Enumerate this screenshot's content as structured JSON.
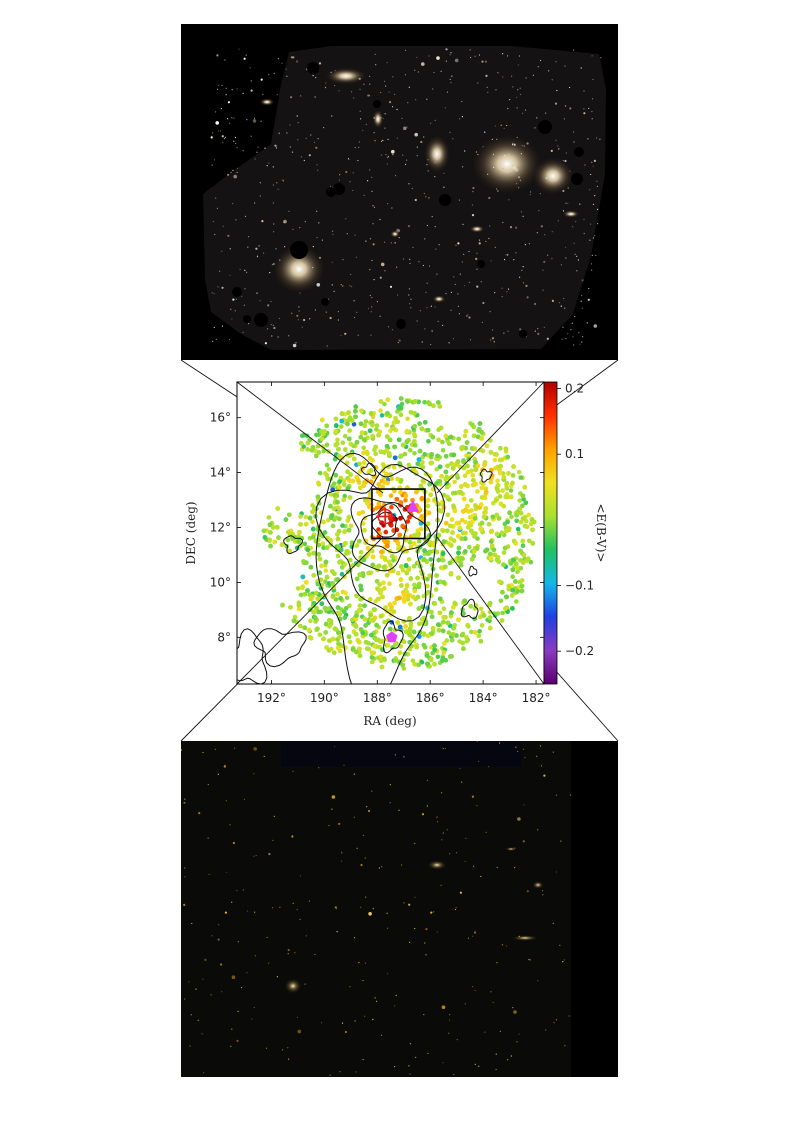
{
  "chart_data": {
    "type": "scatter",
    "xlabel": "RA (deg)",
    "ylabel": "DEC (deg)",
    "colorbar_label": "<E(B-V)>",
    "xlim": [
      193.3,
      181.7
    ],
    "ylim": [
      6.3,
      17.3
    ],
    "x_ticks": [
      192,
      190,
      188,
      186,
      184,
      182
    ],
    "x_tick_labels": [
      "192°",
      "190°",
      "188°",
      "186°",
      "184°",
      "182°"
    ],
    "y_ticks": [
      8,
      10,
      12,
      14,
      16
    ],
    "y_tick_labels": [
      "8°",
      "10°",
      "12°",
      "14°",
      "16°"
    ],
    "colorbar_range": [
      -0.25,
      0.21
    ],
    "colorbar_ticks": [
      0.2,
      0.1,
      -0.1,
      -0.2
    ],
    "colorbar_tick_labels": [
      "0.2",
      "0.1",
      "−0.1",
      "−0.2"
    ],
    "colormap": [
      "#5a0070",
      "#8a3bbf",
      "#2040e0",
      "#14b8e8",
      "#20c060",
      "#a8e030",
      "#f0e020",
      "#ffa000",
      "#ff3000",
      "#b00000"
    ],
    "box": {
      "ra_min": 186.2,
      "ra_max": 188.2,
      "dec_min": 11.6,
      "dec_max": 13.4
    },
    "markers": [
      {
        "type": "red-cross",
        "ra": 187.7,
        "dec": 12.4,
        "color": "#e02020"
      },
      {
        "type": "magenta-triangle",
        "ra": 186.65,
        "dec": 12.75,
        "color": "#e040ff"
      },
      {
        "type": "magenta-pentagon",
        "ra": 187.45,
        "dec": 8.0,
        "color": "#e040ff"
      }
    ],
    "field_center": {
      "ra": 187.2,
      "dec": 11.8
    },
    "field_radius_deg": 5.0,
    "hotspots": [
      {
        "ra": 187.7,
        "dec": 12.1,
        "strength": 0.18
      },
      {
        "ra": 186.9,
        "dec": 12.7,
        "strength": 0.12
      },
      {
        "ra": 187.3,
        "dec": 9.4,
        "strength": 0.06
      },
      {
        "ra": 188.3,
        "dec": 13.8,
        "strength": 0.07
      },
      {
        "ra": 184.8,
        "dec": 12.4,
        "strength": 0.05
      },
      {
        "ra": 183.9,
        "dec": 13.9,
        "strength": 0.06
      }
    ],
    "empty_regions": [
      {
        "ra": 191.6,
        "dec": 13.8,
        "radius_deg": 1.3
      },
      {
        "ra": 191.7,
        "dec": 10.2,
        "radius_deg": 1.0
      },
      {
        "ra": 184.2,
        "dec": 10.0,
        "radius_deg": 0.9
      },
      {
        "ra": 185.0,
        "dec": 16.0,
        "radius_deg": 0.6
      }
    ]
  }
}
